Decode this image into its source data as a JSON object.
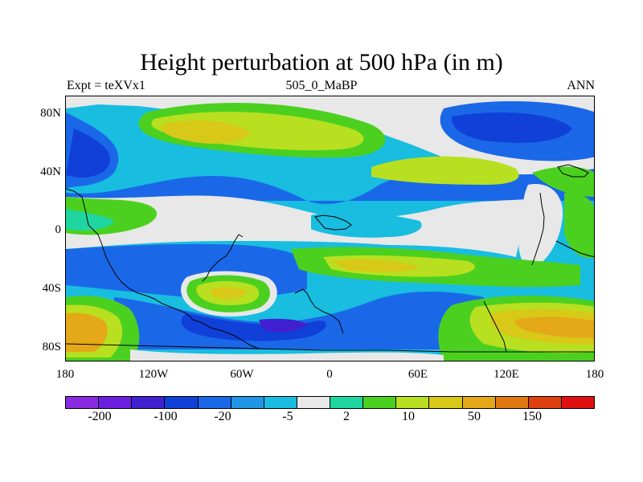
{
  "title": "Height perturbation at 500 hPa (in m)",
  "subtitle_left": "Expt = teXVx1",
  "subtitle_center": "505_0_MaBP",
  "subtitle_right": "ANN",
  "y_axis_labels": [
    "80N",
    "40N",
    "0",
    "40S",
    "80S"
  ],
  "x_axis_labels": [
    "180",
    "120W",
    "60W",
    "0",
    "60E",
    "120E",
    "180"
  ],
  "colorbar": {
    "colors": [
      "#8a2be2",
      "#6a1ee0",
      "#4020d0",
      "#1040d8",
      "#1a68e8",
      "#2196e6",
      "#18bde0",
      "#e8e8e8",
      "#20d6a0",
      "#4cd020",
      "#b8e020",
      "#d8c818",
      "#e4a818",
      "#e07810",
      "#e04010",
      "#e01010"
    ],
    "labels": [
      "-200",
      "-100",
      "-20",
      "-5",
      "2",
      "10",
      "50",
      "150"
    ]
  },
  "colors": {
    "land_outline": "#000000",
    "background": "#ffffff"
  }
}
